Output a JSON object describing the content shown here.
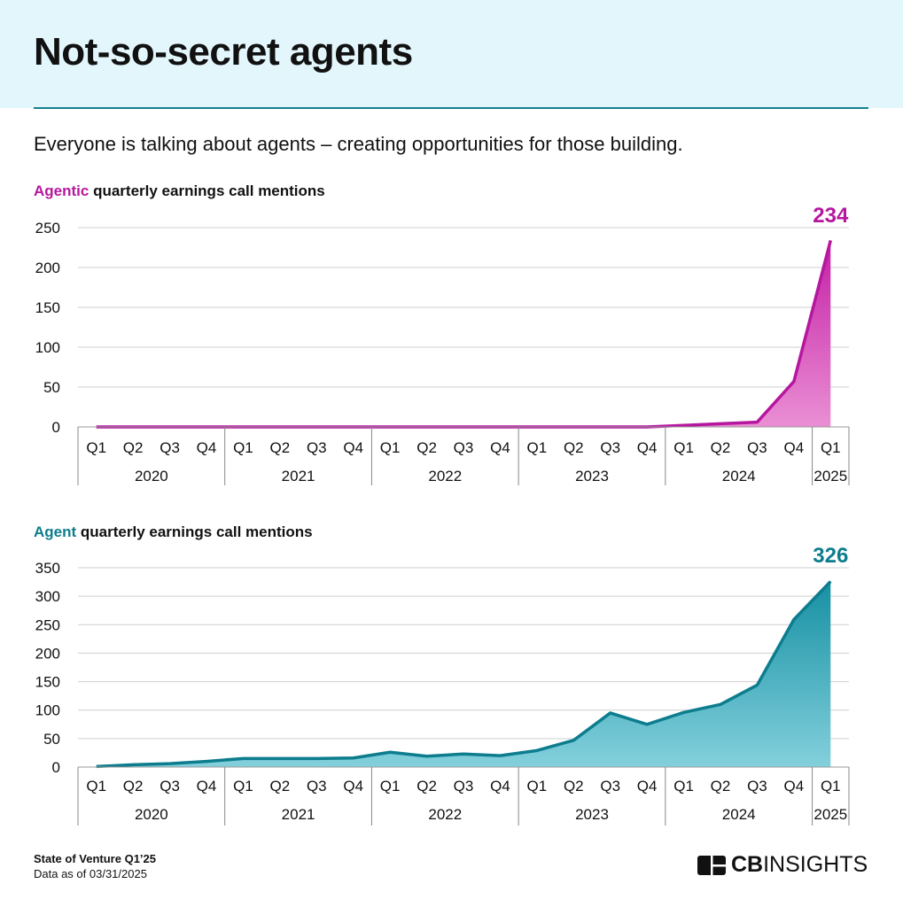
{
  "header": {
    "title": "Not-so-secret agents",
    "subtitle": "Everyone is talking about agents – creating opportunities for those building."
  },
  "footer": {
    "source": "State of Venture Q1’25",
    "data_as_of": "Data as of 03/31/2025",
    "logo_text_bold": "CB",
    "logo_text": "INSIGHTS"
  },
  "chart_data": [
    {
      "type": "area",
      "title_keyword": "Agentic",
      "title_rest": " quarterly earnings call mentions",
      "color": "#b5179e",
      "fill_top": "#c41fa6",
      "fill_bottom": "#ea8fd4",
      "categories": [
        "Q1",
        "Q2",
        "Q3",
        "Q4",
        "Q1",
        "Q2",
        "Q3",
        "Q4",
        "Q1",
        "Q2",
        "Q3",
        "Q4",
        "Q1",
        "Q2",
        "Q3",
        "Q4",
        "Q1",
        "Q2",
        "Q3",
        "Q4",
        "Q1"
      ],
      "year_groups": [
        {
          "label": "2020",
          "count": 4
        },
        {
          "label": "2021",
          "count": 4
        },
        {
          "label": "2022",
          "count": 4
        },
        {
          "label": "2023",
          "count": 4
        },
        {
          "label": "2024",
          "count": 4
        },
        {
          "label": "2025",
          "count": 1
        }
      ],
      "values": [
        0,
        0,
        0,
        0,
        0,
        0,
        0,
        0,
        0,
        0,
        0,
        0,
        0,
        0,
        0,
        0,
        2,
        4,
        6,
        57,
        234
      ],
      "last_label": "234",
      "yticks": [
        "0",
        "50",
        "100",
        "150",
        "200",
        "250"
      ],
      "ylim": [
        0,
        250
      ],
      "grid": true
    },
    {
      "type": "area",
      "title_keyword": "Agent",
      "title_rest": " quarterly earnings call mentions",
      "color": "#0d7d8e",
      "fill_top": "#1690a3",
      "fill_bottom": "#83d0dc",
      "categories": [
        "Q1",
        "Q2",
        "Q3",
        "Q4",
        "Q1",
        "Q2",
        "Q3",
        "Q4",
        "Q1",
        "Q2",
        "Q3",
        "Q4",
        "Q1",
        "Q2",
        "Q3",
        "Q4",
        "Q1",
        "Q2",
        "Q3",
        "Q4",
        "Q1"
      ],
      "year_groups": [
        {
          "label": "2020",
          "count": 4
        },
        {
          "label": "2021",
          "count": 4
        },
        {
          "label": "2022",
          "count": 4
        },
        {
          "label": "2023",
          "count": 4
        },
        {
          "label": "2024",
          "count": 4
        },
        {
          "label": "2025",
          "count": 1
        }
      ],
      "values": [
        1,
        4,
        6,
        10,
        15,
        15,
        15,
        16,
        26,
        19,
        23,
        20,
        29,
        47,
        95,
        75,
        96,
        110,
        144,
        259,
        326
      ],
      "last_label": "326",
      "yticks": [
        "0",
        "50",
        "100",
        "150",
        "200",
        "250",
        "300",
        "350"
      ],
      "ylim": [
        0,
        350
      ],
      "grid": true
    }
  ]
}
